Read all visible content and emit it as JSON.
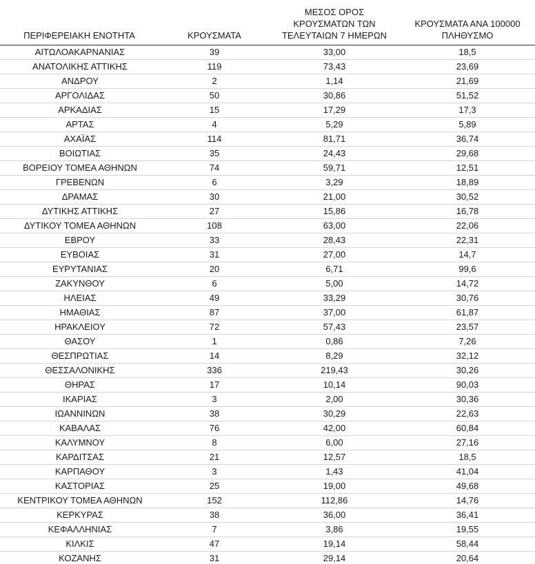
{
  "chart_data": {
    "type": "table",
    "columns": [
      "ΠΕΡΙΦΕΡΕΙΑΚΗ ΕΝΟΤΗΤΑ",
      "ΚΡΟΥΣΜΑΤΑ",
      "ΜΕΣΟΣ ΟΡΟΣ ΚΡΟΥΣΜΑΤΩΝ ΤΩΝ ΤΕΛΕΥΤΑΙΩΝ 7 ΗΜΕΡΩΝ",
      "ΚΡΟΥΣΜΑΤΑ ΑΝΑ 100000 ΠΛΗΘΥΣΜΟ"
    ],
    "rows": [
      [
        "ΑΙΤΩΛΟΑΚΑΡΝΑΝΙΑΣ",
        "39",
        "33,00",
        "18,5"
      ],
      [
        "ΑΝΑΤΟΛΙΚΗΣ ΑΤΤΙΚΗΣ",
        "119",
        "73,43",
        "23,69"
      ],
      [
        "ΑΝΔΡΟΥ",
        "2",
        "1,14",
        "21,69"
      ],
      [
        "ΑΡΓΟΛΙΔΑΣ",
        "50",
        "30,86",
        "51,52"
      ],
      [
        "ΑΡΚΑΔΙΑΣ",
        "15",
        "17,29",
        "17,3"
      ],
      [
        "ΑΡΤΑΣ",
        "4",
        "5,29",
        "5,89"
      ],
      [
        "ΑΧΑΪΑΣ",
        "114",
        "81,71",
        "36,74"
      ],
      [
        "ΒΟΙΩΤΙΑΣ",
        "35",
        "24,43",
        "29,68"
      ],
      [
        "ΒΟΡΕΙΟΥ ΤΟΜΕΑ ΑΘΗΝΩΝ",
        "74",
        "59,71",
        "12,51"
      ],
      [
        "ΓΡΕΒΕΝΩΝ",
        "6",
        "3,29",
        "18,89"
      ],
      [
        "ΔΡΑΜΑΣ",
        "30",
        "21,00",
        "30,52"
      ],
      [
        "ΔΥΤΙΚΗΣ ΑΤΤΙΚΗΣ",
        "27",
        "15,86",
        "16,78"
      ],
      [
        "ΔΥΤΙΚΟΥ ΤΟΜΕΑ ΑΘΗΝΩΝ",
        "108",
        "63,00",
        "22,06"
      ],
      [
        "ΕΒΡΟΥ",
        "33",
        "28,43",
        "22,31"
      ],
      [
        "ΕΥΒΟΙΑΣ",
        "31",
        "27,00",
        "14,7"
      ],
      [
        "ΕΥΡΥΤΑΝΙΑΣ",
        "20",
        "6,71",
        "99,6"
      ],
      [
        "ΖΑΚΥΝΘΟΥ",
        "6",
        "5,00",
        "14,72"
      ],
      [
        "ΗΛΕΙΑΣ",
        "49",
        "33,29",
        "30,76"
      ],
      [
        "ΗΜΑΘΙΑΣ",
        "87",
        "37,00",
        "61,87"
      ],
      [
        "ΗΡΑΚΛΕΙΟΥ",
        "72",
        "57,43",
        "23,57"
      ],
      [
        "ΘΑΣΟΥ",
        "1",
        "0,86",
        "7,26"
      ],
      [
        "ΘΕΣΠΡΩΤΙΑΣ",
        "14",
        "8,29",
        "32,12"
      ],
      [
        "ΘΕΣΣΑΛΟΝΙΚΗΣ",
        "336",
        "219,43",
        "30,26"
      ],
      [
        "ΘΗΡΑΣ",
        "17",
        "10,14",
        "90,03"
      ],
      [
        "ΙΚΑΡΙΑΣ",
        "3",
        "2,00",
        "30,36"
      ],
      [
        "ΙΩΑΝΝΙΝΩΝ",
        "38",
        "30,29",
        "22,63"
      ],
      [
        "ΚΑΒΑΛΑΣ",
        "76",
        "42,00",
        "60,84"
      ],
      [
        "ΚΑΛΥΜΝΟΥ",
        "8",
        "6,00",
        "27,16"
      ],
      [
        "ΚΑΡΔΙΤΣΑΣ",
        "21",
        "12,57",
        "18,5"
      ],
      [
        "ΚΑΡΠΑΘΟΥ",
        "3",
        "1,43",
        "41,04"
      ],
      [
        "ΚΑΣΤΟΡΙΑΣ",
        "25",
        "19,00",
        "49,68"
      ],
      [
        "ΚΕΝΤΡΙΚΟΥ ΤΟΜΕΑ ΑΘΗΝΩΝ",
        "152",
        "112,86",
        "14,76"
      ],
      [
        "ΚΕΡΚΥΡΑΣ",
        "38",
        "36,00",
        "36,41"
      ],
      [
        "ΚΕΦΑΛΛΗΝΙΑΣ",
        "7",
        "3,86",
        "19,55"
      ],
      [
        "ΚΙΛΚΙΣ",
        "47",
        "19,14",
        "58,44"
      ],
      [
        "ΚΟΖΑΝΗΣ",
        "31",
        "29,14",
        "20,64"
      ]
    ]
  }
}
